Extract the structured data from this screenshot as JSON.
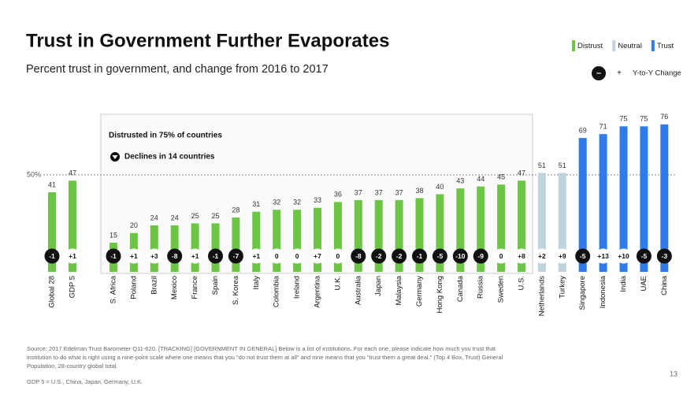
{
  "chart_data": {
    "type": "bar",
    "title": "Trust in Government Further Evaporates",
    "subtitle": "Percent trust in government, and change from 2016 to 2017",
    "categories": [
      "Global 28",
      "GDP 5",
      "S. Africa",
      "Poland",
      "Brazil",
      "Mexico",
      "France",
      "Spain",
      "S. Korea",
      "Italy",
      "Colombia",
      "Ireland",
      "Argentina",
      "U.K.",
      "Australia",
      "Japan",
      "Malaysia",
      "Germany",
      "Hong Kong",
      "Canada",
      "Russia",
      "Sweden",
      "U.S.",
      "Netherlands",
      "Turkey",
      "Singapore",
      "Indonesia",
      "India",
      "UAE",
      "China"
    ],
    "series": [
      {
        "name": "Distrust",
        "color": "#6cc644",
        "values": [
          41,
          47,
          15,
          20,
          24,
          24,
          25,
          25,
          28,
          31,
          32,
          32,
          33,
          36,
          37,
          37,
          37,
          38,
          40,
          43,
          44,
          45,
          47,
          null,
          null,
          null,
          null,
          null,
          null,
          null
        ]
      },
      {
        "name": "Neutral",
        "color": "#bfd3dc",
        "values": [
          null,
          null,
          null,
          null,
          null,
          null,
          null,
          null,
          null,
          null,
          null,
          null,
          null,
          null,
          null,
          null,
          null,
          null,
          null,
          null,
          null,
          null,
          null,
          51,
          51,
          null,
          null,
          null,
          null,
          null
        ]
      },
      {
        "name": "Trust",
        "color": "#2f7bea",
        "values": [
          null,
          null,
          null,
          null,
          null,
          null,
          null,
          null,
          null,
          null,
          null,
          null,
          null,
          null,
          null,
          null,
          null,
          null,
          null,
          null,
          null,
          null,
          null,
          null,
          null,
          69,
          71,
          75,
          75,
          76
        ]
      }
    ],
    "changes": {
      "name": "Y-to-Y Change",
      "values": [
        -1,
        1,
        -1,
        1,
        3,
        -8,
        1,
        -1,
        -7,
        1,
        0,
        0,
        7,
        0,
        -8,
        -2,
        -2,
        -1,
        -5,
        -10,
        -9,
        0,
        8,
        2,
        9,
        -5,
        13,
        10,
        -5,
        -3
      ],
      "value_labels": [
        "-1",
        "+1",
        "-1",
        "+1",
        "+3",
        "-8",
        "+1",
        "-1",
        "-7",
        "+1",
        "0",
        "0",
        "+7",
        "0",
        "-8",
        "-2",
        "-2",
        "-1",
        "-5",
        "-10",
        "-9",
        "0",
        "+8",
        "+2",
        "+9",
        "-5",
        "+13",
        "+10",
        "-5",
        "-3"
      ],
      "legend_symbols": [
        "–",
        "+"
      ]
    },
    "ylim": [
      0,
      80
    ],
    "yticks": [
      {
        "value": 50,
        "label": "50%"
      }
    ],
    "grid": true,
    "annotations": [
      "Distrusted in 75% of countries",
      "Declines in 14 countries"
    ],
    "source": "Source: 2017 Edelman Trust Barometer  Q11-620. [TRACKING] [GOVERNMENT IN GENERAL] Below is a list of institutions. For each one, please indicate how much you trust that institution to do what is right using a nine-point scale where one means that you \"do not trust them at all\" and nine means that you \"trust them a great deal.\" (Top 4 Box, Trust) General Population, 28-country global total.",
    "footnote": "GDP 5 = U.S., China, Japan, Germany, U.K.",
    "page_number": "13"
  }
}
